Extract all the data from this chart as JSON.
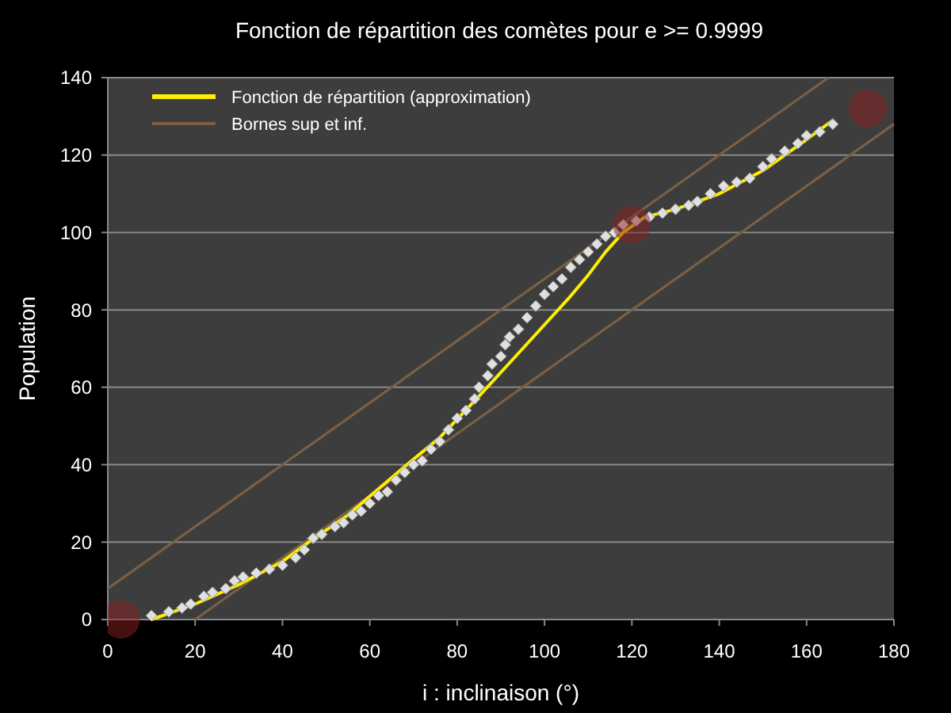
{
  "chart_data": {
    "type": "line",
    "title": "Fonction de répartition des comètes pour e >= 0.9999",
    "xlabel": "i : inclinaison (°)",
    "ylabel": "Population",
    "xlim": [
      0,
      180
    ],
    "xticks": [
      0,
      20,
      40,
      60,
      80,
      100,
      120,
      140,
      160,
      180
    ],
    "ylim": [
      0,
      140
    ],
    "yticks": [
      0,
      20,
      40,
      60,
      80,
      100,
      120,
      140
    ],
    "grid": "y",
    "legend": "top left",
    "series": [
      {
        "type": "scatter",
        "marker": "diamond",
        "color": "#e0e0e0",
        "x": [
          10,
          14,
          17,
          19,
          22,
          24,
          27,
          29,
          31,
          34,
          37,
          40,
          43,
          45,
          47,
          49,
          52,
          54,
          56,
          58,
          60,
          62,
          64,
          66,
          68,
          70,
          72,
          74,
          76,
          78,
          80,
          82,
          84,
          85,
          87,
          88,
          90,
          91,
          92,
          94,
          96,
          98,
          100,
          102,
          104,
          106,
          108,
          110,
          112,
          114,
          116,
          118,
          121,
          124,
          127,
          130,
          133,
          135,
          138,
          141,
          144,
          147,
          150,
          152,
          155,
          158,
          160,
          163,
          166
        ],
        "values": [
          1,
          2,
          3,
          4,
          6,
          7,
          8,
          10,
          11,
          12,
          13,
          14,
          16,
          18,
          21,
          22,
          24,
          25,
          27,
          28,
          30,
          32,
          33,
          36,
          38,
          40,
          41,
          44,
          46,
          49,
          52,
          54,
          57,
          60,
          63,
          66,
          68,
          71,
          73,
          75,
          78,
          81,
          84,
          86,
          88,
          91,
          93,
          95,
          97,
          99,
          100,
          102,
          103,
          104,
          105,
          106,
          107,
          108,
          110,
          112,
          113,
          114,
          117,
          119,
          121,
          123,
          125,
          126,
          128
        ]
      },
      {
        "name": "Fonction de répartition (approximation)",
        "color": "#ffee00",
        "x": [
          10,
          20,
          30,
          40,
          46,
          55,
          67,
          76,
          85,
          95,
          106,
          110,
          114,
          118,
          123,
          130,
          140,
          150,
          160,
          166
        ],
        "values": [
          0,
          4,
          9,
          15,
          20,
          27,
          38.6,
          47,
          57.7,
          70,
          83.6,
          89,
          95,
          100,
          104,
          106,
          110,
          116,
          124,
          129
        ]
      },
      {
        "name": "Bornes sup et inf.",
        "color": "#7a5f45",
        "x": [
          0,
          165
        ],
        "values": [
          8,
          140
        ]
      },
      {
        "color": "#7a5f45",
        "x": [
          20,
          180
        ],
        "values": [
          0,
          128
        ]
      },
      {
        "type": "scatter",
        "marker": "circle",
        "color": "#8b2020",
        "x": [
          3,
          120,
          174
        ],
        "values": [
          0,
          102,
          132
        ]
      }
    ]
  }
}
